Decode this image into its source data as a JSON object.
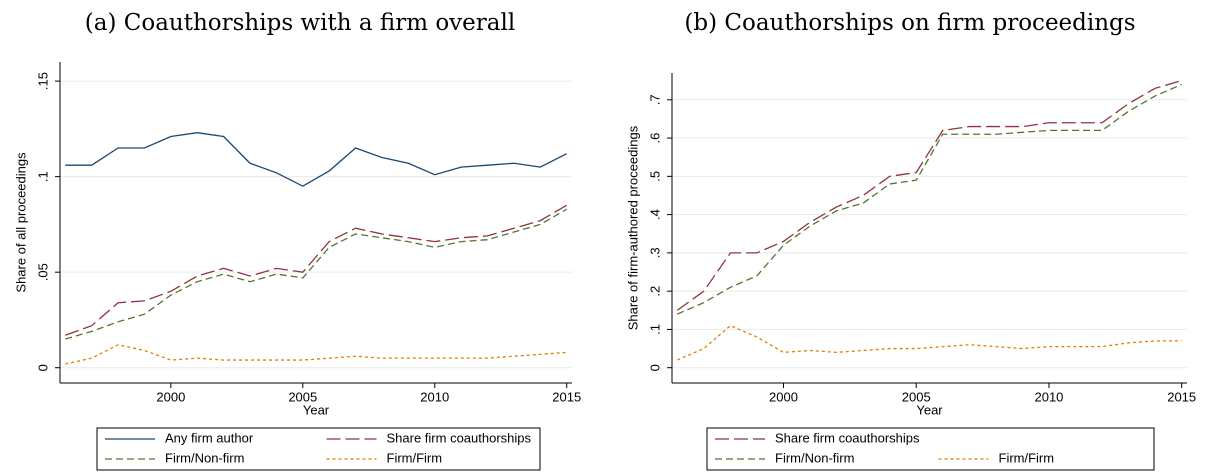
{
  "chart_data": [
    {
      "type": "line",
      "title": "(a) Coauthorships with a firm overall",
      "x_label": "Year",
      "y_label": "Share of all proceedings",
      "x": [
        1996,
        1997,
        1998,
        1999,
        2000,
        2001,
        2002,
        2003,
        2004,
        2005,
        2006,
        2007,
        2008,
        2009,
        2010,
        2011,
        2012,
        2013,
        2014,
        2015
      ],
      "xlim": [
        1995.8,
        2015.2
      ],
      "xticks": [
        2000,
        2005,
        2010,
        2015
      ],
      "ylim": [
        -0.008,
        0.16
      ],
      "yticks": [
        0,
        {
          "value": 0.05,
          "label": ".05"
        },
        {
          "value": 0.1,
          "label": ".1"
        },
        {
          "value": 0.15,
          "label": ".15"
        }
      ],
      "grid": true,
      "series": [
        {
          "name": "Any firm author",
          "color": "#1a476f",
          "line_style": "solid",
          "values": [
            0.106,
            0.106,
            0.115,
            0.115,
            0.121,
            0.123,
            0.121,
            0.107,
            0.102,
            0.095,
            0.103,
            0.115,
            0.11,
            0.107,
            0.101,
            0.105,
            0.106,
            0.107,
            0.105,
            0.112
          ]
        },
        {
          "name": "Share firm coauthorships",
          "color": "#90353b",
          "line_style": "longdash",
          "values": [
            0.017,
            0.022,
            0.034,
            0.035,
            0.04,
            0.048,
            0.052,
            0.048,
            0.052,
            0.05,
            0.066,
            0.073,
            0.07,
            0.068,
            0.066,
            0.068,
            0.069,
            0.073,
            0.077,
            0.085
          ]
        },
        {
          "name": "Firm/Non-firm",
          "color": "#55752f",
          "line_style": "dash",
          "values": [
            0.015,
            0.019,
            0.024,
            0.028,
            0.038,
            0.045,
            0.049,
            0.045,
            0.049,
            0.047,
            0.063,
            0.07,
            0.068,
            0.066,
            0.063,
            0.066,
            0.067,
            0.071,
            0.075,
            0.083
          ]
        },
        {
          "name": "Firm/Firm",
          "color": "#e37e00",
          "line_style": "shortdash",
          "values": [
            0.002,
            0.005,
            0.012,
            0.009,
            0.004,
            0.005,
            0.004,
            0.004,
            0.004,
            0.004,
            0.005,
            0.006,
            0.005,
            0.005,
            0.005,
            0.005,
            0.005,
            0.006,
            0.007,
            0.008
          ]
        }
      ]
    },
    {
      "type": "line",
      "title": "(b) Coauthorships on firm proceedings",
      "x_label": "Year",
      "y_label": "Share of firm-authored proceedings",
      "x": [
        1996,
        1997,
        1998,
        1999,
        2000,
        2001,
        2002,
        2003,
        2004,
        2005,
        2006,
        2007,
        2008,
        2009,
        2010,
        2011,
        2012,
        2013,
        2014,
        2015
      ],
      "xlim": [
        1995.8,
        2015.2
      ],
      "xticks": [
        2000,
        2005,
        2010,
        2015
      ],
      "ylim": [
        -0.04,
        0.77
      ],
      "yticks": [
        0,
        {
          "value": 0.1,
          "label": ".1"
        },
        {
          "value": 0.2,
          "label": ".2"
        },
        {
          "value": 0.3,
          "label": ".3"
        },
        {
          "value": 0.4,
          "label": ".4"
        },
        {
          "value": 0.5,
          "label": ".5"
        },
        {
          "value": 0.6,
          "label": ".6"
        },
        {
          "value": 0.7,
          "label": ".7"
        }
      ],
      "grid": true,
      "series": [
        {
          "name": "Share firm coauthorships",
          "color": "#90353b",
          "line_style": "longdash",
          "values": [
            0.15,
            0.2,
            0.3,
            0.3,
            0.33,
            0.38,
            0.42,
            0.45,
            0.5,
            0.51,
            0.62,
            0.63,
            0.63,
            0.63,
            0.64,
            0.64,
            0.64,
            0.69,
            0.73,
            0.75
          ]
        },
        {
          "name": "Firm/Non-firm",
          "color": "#55752f",
          "line_style": "dash",
          "values": [
            0.14,
            0.17,
            0.21,
            0.24,
            0.32,
            0.37,
            0.41,
            0.43,
            0.48,
            0.49,
            0.61,
            0.61,
            0.61,
            0.615,
            0.62,
            0.62,
            0.62,
            0.67,
            0.71,
            0.74
          ]
        },
        {
          "name": "Firm/Firm",
          "color": "#e37e00",
          "line_style": "shortdash",
          "values": [
            0.02,
            0.05,
            0.11,
            0.08,
            0.04,
            0.045,
            0.04,
            0.045,
            0.05,
            0.05,
            0.055,
            0.06,
            0.055,
            0.05,
            0.055,
            0.055,
            0.055,
            0.065,
            0.07,
            0.07
          ]
        }
      ]
    }
  ]
}
